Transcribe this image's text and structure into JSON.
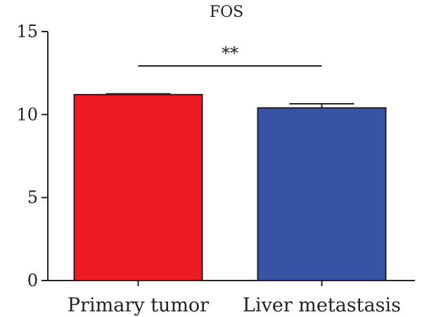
{
  "chart_data": {
    "type": "bar",
    "title": "FOS",
    "xlabel": "",
    "ylabel": "",
    "categories": [
      "Primary tumor",
      "Liver metastasis"
    ],
    "values": [
      11.2,
      10.4
    ],
    "errors": [
      0.05,
      0.25
    ],
    "colors": [
      "#ed1c24",
      "#3953a4"
    ],
    "ylim": [
      0,
      15
    ],
    "yticks": [
      0,
      5,
      10,
      15
    ],
    "significance": {
      "label": "**",
      "between": [
        0,
        1
      ]
    },
    "grid": false,
    "legend": "none"
  }
}
